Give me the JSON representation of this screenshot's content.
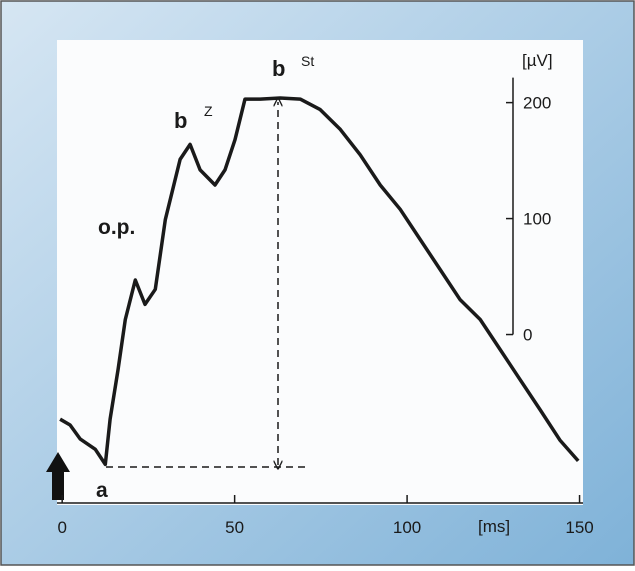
{
  "chart_data": {
    "type": "line",
    "x": [
      -0.6,
      2.3,
      5.2,
      9.6,
      12.5,
      13.9,
      16.2,
      18.3,
      21.2,
      24,
      27,
      29.9,
      34.2,
      37.1,
      40,
      44.3,
      47.2,
      50.1,
      53,
      57.4,
      63.2,
      69,
      74.8,
      80.6,
      86.4,
      92.2,
      98,
      103.8,
      109.6,
      115.4,
      121.2,
      127,
      132.8,
      138.6,
      144.3,
      149.6
    ],
    "values": [
      -73,
      -78,
      -90,
      -99,
      -112,
      -73,
      -30,
      13,
      47,
      26,
      39,
      99,
      151,
      164,
      142,
      129,
      142,
      168,
      203,
      203,
      204,
      203,
      194,
      177,
      155,
      129,
      108,
      82,
      56,
      30,
      13,
      -13,
      -39,
      -65,
      -91,
      -109
    ],
    "color": "#1a1a1a",
    "xlim": [
      -1.5,
      151
    ],
    "xticks": [
      0,
      50,
      100,
      150
    ],
    "ylim": [
      -147,
      254
    ],
    "yticks": [
      0,
      100,
      200
    ],
    "x_label": "[ms]",
    "y_label": "[µV]",
    "annotations": [
      "o.p.",
      "b",
      "Z",
      "St",
      "a"
    ]
  }
}
